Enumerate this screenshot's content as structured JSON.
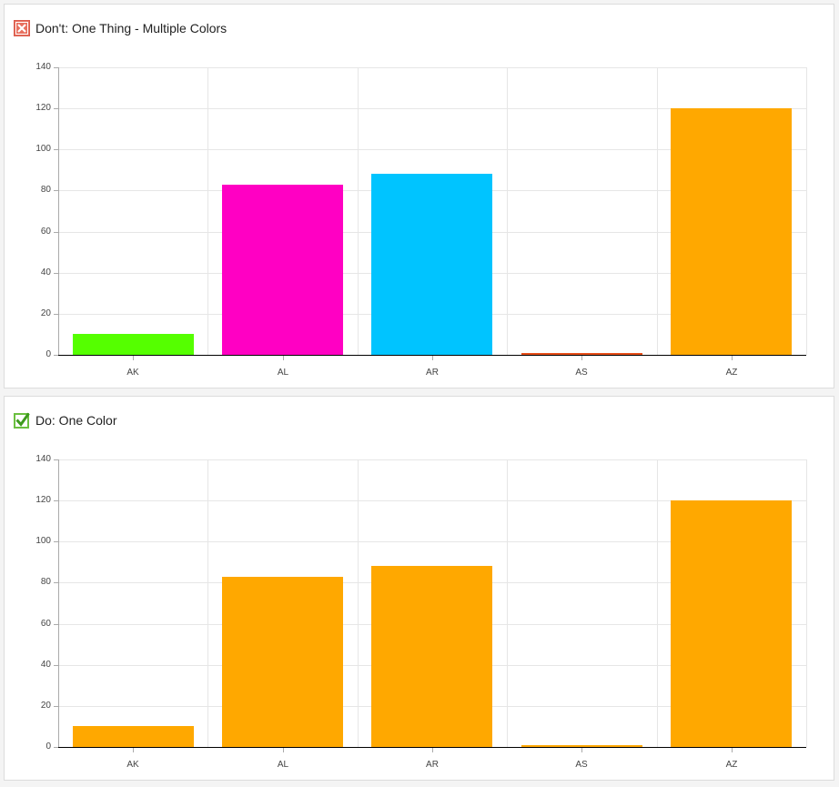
{
  "panels": [
    {
      "title": "Don't: One Thing - Multiple Colors",
      "icon": "red-x-icon",
      "icon_color": "#e8705f"
    },
    {
      "title": "Do: One Color",
      "icon": "green-check-icon",
      "icon_color": "#6bbf3f"
    }
  ],
  "chart_data": [
    {
      "type": "bar",
      "title": "Don't: One Thing - Multiple Colors",
      "categories": [
        "AK",
        "AL",
        "AR",
        "AS",
        "AZ"
      ],
      "values": [
        10,
        83,
        88,
        1,
        120
      ],
      "colors": [
        "#55ff00",
        "#ff00c3",
        "#00c4ff",
        "#e8501a",
        "#ffa800"
      ],
      "xlabel": "",
      "ylabel": "",
      "ylim": [
        0,
        140
      ],
      "yticks": [
        0,
        20,
        40,
        60,
        80,
        100,
        120,
        140
      ],
      "grid": true,
      "legend": false
    },
    {
      "type": "bar",
      "title": "Do: One Color",
      "categories": [
        "AK",
        "AL",
        "AR",
        "AS",
        "AZ"
      ],
      "values": [
        10,
        83,
        88,
        1,
        120
      ],
      "colors": [
        "#ffa800",
        "#ffa800",
        "#ffa800",
        "#ffa800",
        "#ffa800"
      ],
      "xlabel": "",
      "ylabel": "",
      "ylim": [
        0,
        140
      ],
      "yticks": [
        0,
        20,
        40,
        60,
        80,
        100,
        120,
        140
      ],
      "grid": true,
      "legend": false
    }
  ]
}
